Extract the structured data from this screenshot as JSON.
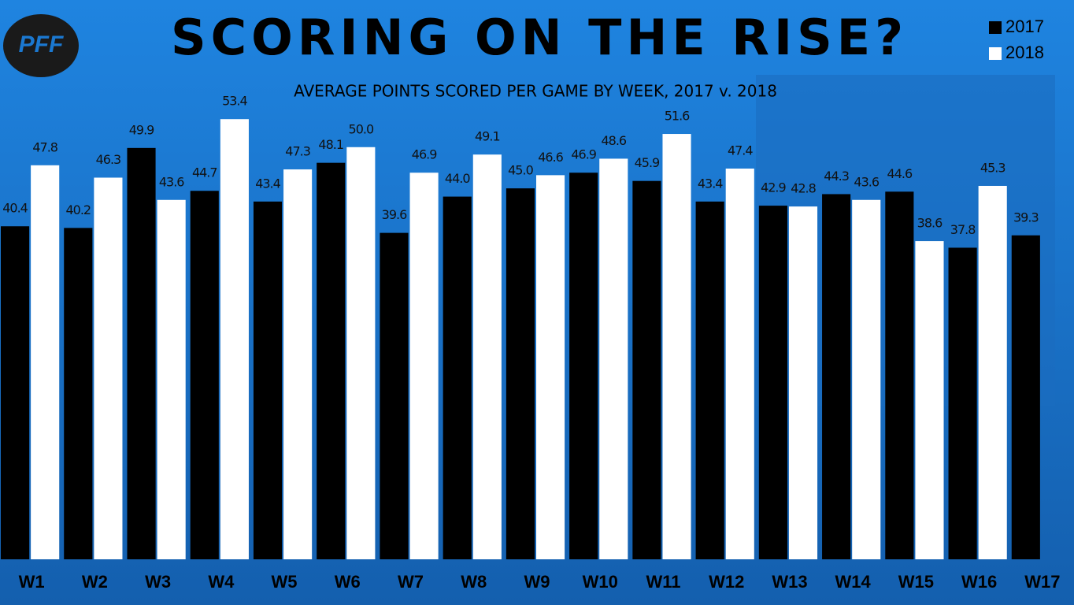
{
  "chart_data": {
    "type": "bar",
    "logo": "PFF",
    "title": "SCORING ON THE RISE?",
    "subtitle": "AVERAGE POINTS SCORED PER GAME BY WEEK, 2017 v. 2018",
    "categories": [
      "W1",
      "W2",
      "W3",
      "W4",
      "W5",
      "W6",
      "W7",
      "W8",
      "W9",
      "W10",
      "W11",
      "W12",
      "W13",
      "W14",
      "W15",
      "W16",
      "W17"
    ],
    "series": [
      {
        "name": "2017",
        "color": "#000000",
        "values": [
          40.4,
          40.2,
          49.9,
          44.7,
          43.4,
          48.1,
          39.6,
          44.0,
          45.0,
          46.9,
          45.9,
          43.4,
          42.9,
          44.3,
          44.6,
          37.8,
          39.3
        ],
        "value_labels": [
          "40.4",
          "40.2",
          "49.9",
          "44.7",
          "43.4",
          "48.1",
          "39.6",
          "44.0",
          "45.0",
          "46.9",
          "45.9",
          "43.4",
          "42.9",
          "44.3",
          "44.6",
          "37.8",
          "39.3"
        ]
      },
      {
        "name": "2018",
        "color": "#ffffff",
        "values": [
          47.8,
          46.3,
          43.6,
          53.4,
          47.3,
          50.0,
          46.9,
          49.1,
          46.6,
          48.6,
          51.6,
          47.4,
          42.8,
          43.6,
          38.6,
          45.3,
          null
        ],
        "value_labels": [
          "47.8",
          "46.3",
          "43.6",
          "53.4",
          "47.3",
          "50.0",
          "46.9",
          "49.1",
          "46.6",
          "48.6",
          "51.6",
          "47.4",
          "42.8",
          "43.6",
          "38.6",
          "45.3",
          null
        ]
      }
    ],
    "ylim": [
      0,
      56
    ],
    "legend": "top-right"
  }
}
